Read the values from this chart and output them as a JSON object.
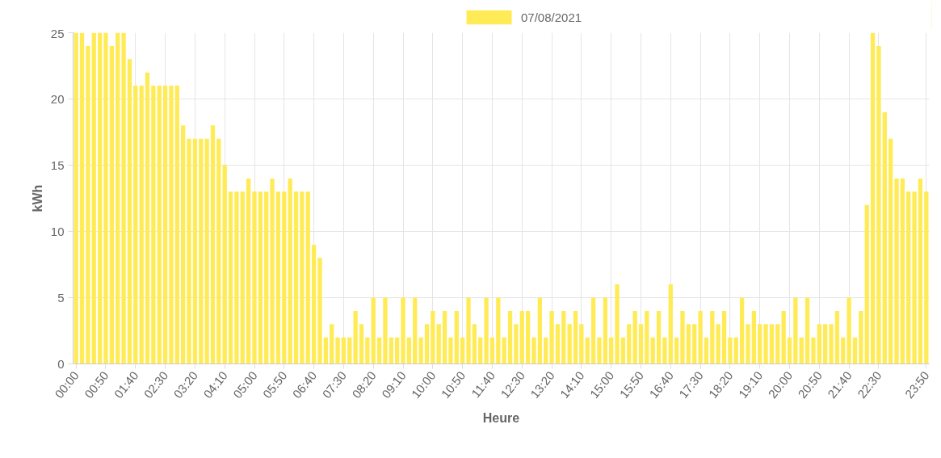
{
  "chart_data": {
    "type": "bar",
    "xlabel": "Heure",
    "ylabel": "kWh",
    "categories": [
      "00:00",
      null,
      null,
      null,
      null,
      "00:50",
      null,
      null,
      null,
      null,
      "01:40",
      null,
      null,
      null,
      null,
      "02:30",
      null,
      null,
      null,
      null,
      "03:20",
      null,
      null,
      null,
      null,
      "04:10",
      null,
      null,
      null,
      null,
      "05:00",
      null,
      null,
      null,
      null,
      "05:50",
      null,
      null,
      null,
      null,
      "06:40",
      null,
      null,
      null,
      null,
      "07:30",
      null,
      null,
      null,
      null,
      "08:20",
      null,
      null,
      null,
      null,
      "09:10",
      null,
      null,
      null,
      null,
      "10:00",
      null,
      null,
      null,
      null,
      "10:50",
      null,
      null,
      null,
      null,
      "11:40",
      null,
      null,
      null,
      null,
      "12:30",
      null,
      null,
      null,
      null,
      "13:20",
      null,
      null,
      null,
      null,
      "14:10",
      null,
      null,
      null,
      null,
      "15:00",
      null,
      null,
      null,
      null,
      "15:50",
      null,
      null,
      null,
      null,
      "16:40",
      null,
      null,
      null,
      null,
      "17:30",
      null,
      null,
      null,
      null,
      "18:20",
      null,
      null,
      null,
      null,
      "19:10",
      null,
      null,
      null,
      null,
      "20:00",
      null,
      null,
      null,
      null,
      "20:50",
      null,
      null,
      null,
      null,
      "21:40",
      null,
      null,
      null,
      null,
      "22:30",
      null,
      null,
      null,
      null,
      null,
      null,
      null,
      "23:50"
    ],
    "series": [
      {
        "name": "07/08/2021",
        "color": "#ffeb56",
        "values": [
          25,
          25,
          24,
          25,
          25,
          25,
          24,
          25,
          25,
          23,
          21,
          21,
          22,
          21,
          21,
          21,
          21,
          21,
          18,
          17,
          17,
          17,
          17,
          18,
          17,
          15,
          13,
          13,
          13,
          14,
          13,
          13,
          13,
          14,
          13,
          13,
          14,
          13,
          13,
          13,
          9,
          8,
          2,
          3,
          2,
          2,
          2,
          4,
          3,
          2,
          5,
          2,
          5,
          2,
          2,
          5,
          2,
          5,
          2,
          3,
          4,
          3,
          4,
          2,
          4,
          2,
          5,
          3,
          2,
          5,
          2,
          5,
          2,
          4,
          3,
          4,
          4,
          2,
          5,
          2,
          4,
          3,
          4,
          3,
          4,
          3,
          2,
          5,
          2,
          5,
          2,
          6,
          2,
          3,
          4,
          3,
          4,
          2,
          4,
          2,
          6,
          2,
          4,
          3,
          3,
          4,
          2,
          4,
          3,
          4,
          2,
          2,
          5,
          3,
          4,
          3,
          3,
          3,
          3,
          4,
          2,
          5,
          2,
          5,
          2,
          3,
          3,
          3,
          4,
          2,
          5,
          2,
          4,
          12,
          25,
          24,
          19,
          17,
          14,
          14,
          13,
          13,
          14,
          13
        ]
      }
    ],
    "ylim": [
      0,
      25
    ],
    "yticks": [
      0,
      5,
      10,
      15,
      20,
      25
    ],
    "grid": true,
    "legend": "top"
  }
}
